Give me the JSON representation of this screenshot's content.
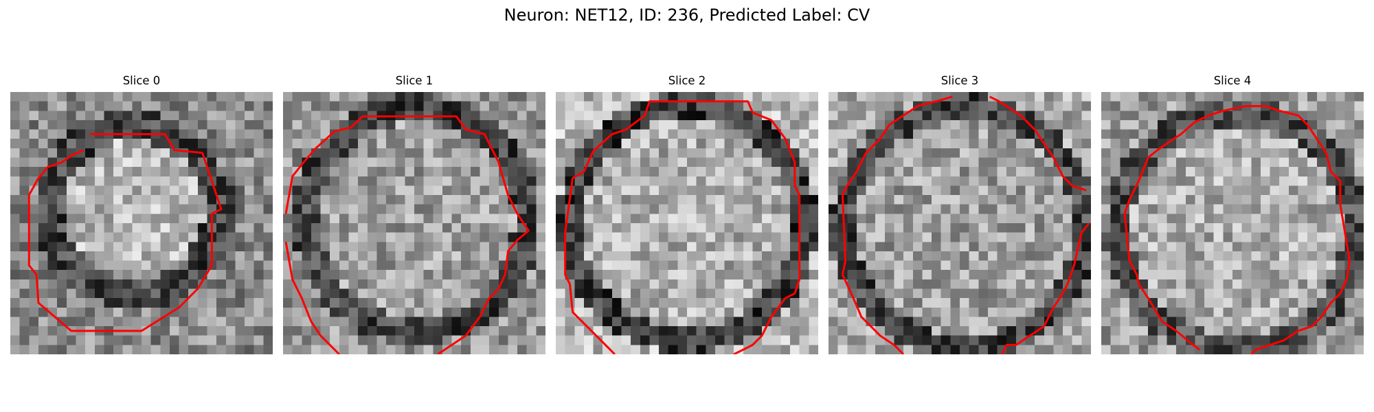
{
  "figure": {
    "title": "Neuron: NET12, ID: 236, Predicted Label: CV"
  },
  "colors": {
    "contour": "#ff0000",
    "background": "#ffffff",
    "colormap": "gray"
  },
  "panels": [
    {
      "title": "Slice 0"
    },
    {
      "title": "Slice 1"
    },
    {
      "title": "Slice 2"
    },
    {
      "title": "Slice 3"
    },
    {
      "title": "Slice 4"
    }
  ]
}
